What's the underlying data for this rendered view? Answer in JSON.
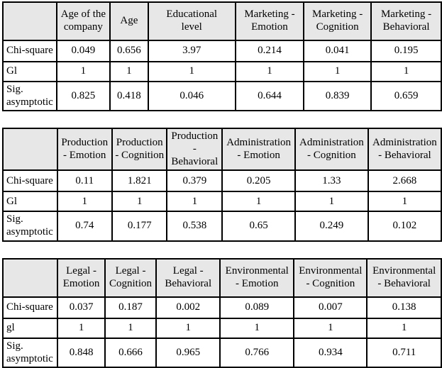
{
  "colors": {
    "page_background": "#ffffff",
    "header_background": "#e7e7e7",
    "border": "#000000",
    "text": "#000000"
  },
  "tables": [
    {
      "title": "chi-square-results-demographics-marketing",
      "headers": [
        "",
        "Age of the\ncompany",
        "Age",
        "Educational\nlevel",
        "Marketing -\nEmotion",
        "Marketing -\nCognition",
        "Marketing -\nBehavioral"
      ],
      "rows": [
        {
          "label": "Chi-square",
          "values": [
            "0.049",
            "0.656",
            "3.97",
            "0.214",
            "0.041",
            "0.195"
          ]
        },
        {
          "label": "Gl",
          "values": [
            "1",
            "1",
            "1",
            "1",
            "1",
            "1"
          ]
        },
        {
          "label": "Sig.\nasymptotic",
          "values": [
            "0.825",
            "0.418",
            "0.046",
            "0.644",
            "0.839",
            "0.659"
          ]
        }
      ]
    },
    {
      "title": "chi-square-results-production-administration",
      "headers": [
        "",
        "Production\n- Emotion",
        "Production\n- Cognition",
        "Production\n- Behavioral",
        "Administration\n- Emotion",
        "Administration\n- Cognition",
        "Administration\n- Behavioral"
      ],
      "rows": [
        {
          "label": "Chi-square",
          "values": [
            "0.11",
            "1.821",
            "0.379",
            "0.205",
            "1.33",
            "2.668"
          ]
        },
        {
          "label": "Gl",
          "values": [
            "1",
            "1",
            "1",
            "1",
            "1",
            "1"
          ]
        },
        {
          "label": "Sig.\nasymptotic",
          "values": [
            "0.74",
            "0.177",
            "0.538",
            "0.65",
            "0.249",
            "0.102"
          ]
        }
      ]
    },
    {
      "title": "chi-square-results-legal-environmental",
      "headers": [
        "",
        "Legal -\nEmotion",
        "Legal -\nCognition",
        "Legal -\nBehavioral",
        "Environmental\n- Emotion",
        "Environmental\n- Cognition",
        "Environmental\n- Behavioral"
      ],
      "rows": [
        {
          "label": "Chi-square",
          "values": [
            "0.037",
            "0.187",
            "0.002",
            "0.089",
            "0.007",
            "0.138"
          ]
        },
        {
          "label": "gl",
          "values": [
            "1",
            "1",
            "1",
            "1",
            "1",
            "1"
          ]
        },
        {
          "label": "Sig.\nasymptotic",
          "values": [
            "0.848",
            "0.666",
            "0.965",
            "0.766",
            "0.934",
            "0.711"
          ]
        }
      ]
    }
  ]
}
